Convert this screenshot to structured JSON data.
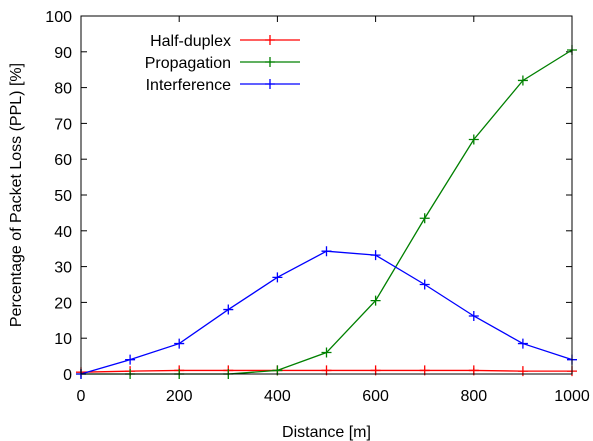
{
  "chart_data": {
    "type": "line",
    "xlabel": "Distance [m]",
    "ylabel": "Percentage of Packet Loss (PPL) [%]",
    "xlim": [
      0,
      1000
    ],
    "ylim": [
      0,
      100
    ],
    "x_ticks": [
      0,
      200,
      400,
      600,
      800,
      1000
    ],
    "y_ticks": [
      0,
      10,
      20,
      30,
      40,
      50,
      60,
      70,
      80,
      90,
      100
    ],
    "grid": false,
    "legend_position": "top-left",
    "x": [
      0,
      100,
      200,
      300,
      400,
      500,
      600,
      700,
      800,
      900,
      1000
    ],
    "series": [
      {
        "name": "Half-duplex",
        "color": "#ff0000",
        "values": [
          0.5,
          0.8,
          1.0,
          1.0,
          1.0,
          1.0,
          1.0,
          1.0,
          1.0,
          0.8,
          0.8
        ]
      },
      {
        "name": "Propagation",
        "color": "#008000",
        "values": [
          0,
          0,
          0,
          0,
          1.0,
          6.0,
          20.5,
          43.5,
          65.5,
          82.0,
          90.5
        ]
      },
      {
        "name": "Interference",
        "color": "#0000ff",
        "values": [
          0,
          4.0,
          8.5,
          18.0,
          27.0,
          34.3,
          33.2,
          25.0,
          16.2,
          8.5,
          4.0
        ]
      }
    ]
  }
}
